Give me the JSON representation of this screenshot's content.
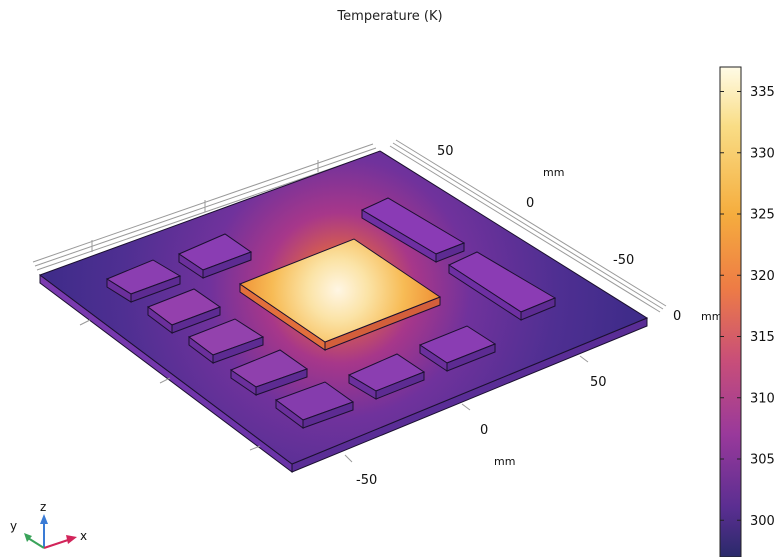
{
  "title": "Temperature (K)",
  "colors": {
    "board_edge": "#6a2fa0",
    "grid": "#9a9a9a",
    "outline": "#1b1030",
    "triad_x": "#d2245a",
    "triad_y": "#3aa35a",
    "triad_z": "#3a7bd5"
  },
  "colorbar": {
    "min": 297,
    "max": 337,
    "ticks": [
      "335",
      "330",
      "325",
      "320",
      "315",
      "310",
      "305",
      "300"
    ],
    "colormap": "heat (purple-orange-white)"
  },
  "axes": {
    "unit": "mm",
    "y_ticks": [
      "50",
      "0",
      "-50"
    ],
    "y_unit": "mm",
    "x_ticks": [
      "50",
      "0",
      "-50"
    ],
    "x_unit": "mm",
    "z_tick": "0",
    "z_unit": "mm"
  },
  "triad": {
    "x": "x",
    "y": "y",
    "z": "z"
  }
}
